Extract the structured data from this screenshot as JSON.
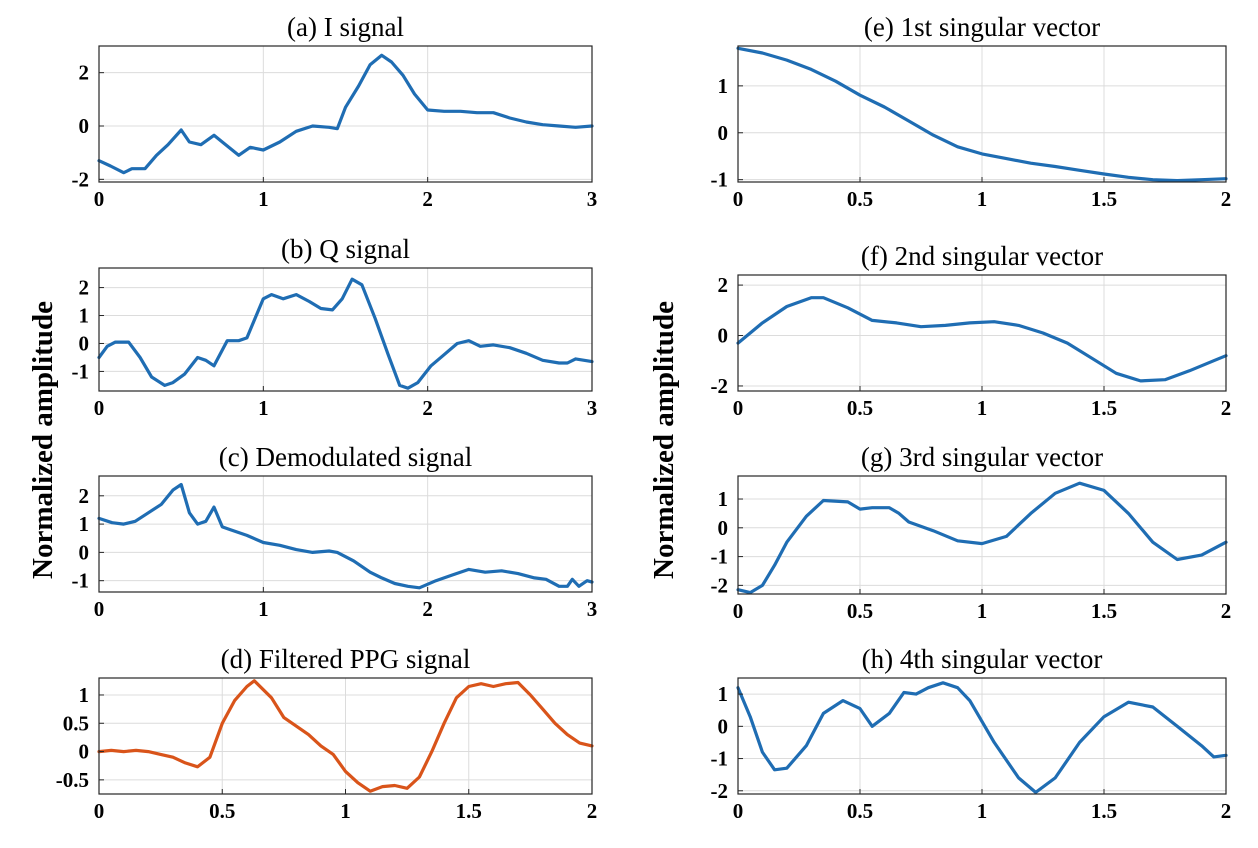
{
  "y_label_left": "Normalized amplitude",
  "y_label_right": "Normalized amplitude",
  "colors": {
    "blue": "#1f6db3",
    "orange": "#d9541a"
  },
  "chart_data": [
    {
      "id": "a",
      "type": "line",
      "title": "(a) I signal",
      "xlim": [
        0,
        3
      ],
      "ylim": [
        -2.1,
        3.0
      ],
      "xticks": [
        0,
        1,
        2,
        3
      ],
      "xtick_labels": [
        "0",
        "1",
        "2",
        "3"
      ],
      "yticks": [
        -2,
        0,
        2
      ],
      "ytick_labels": [
        "-2",
        "0",
        "2"
      ],
      "color": "blue",
      "series": [
        {
          "name": "I signal",
          "x": [
            0,
            0.07,
            0.15,
            0.2,
            0.28,
            0.35,
            0.42,
            0.5,
            0.55,
            0.62,
            0.7,
            0.75,
            0.85,
            0.92,
            1.0,
            1.1,
            1.2,
            1.3,
            1.4,
            1.45,
            1.5,
            1.58,
            1.65,
            1.72,
            1.78,
            1.85,
            1.92,
            2.0,
            2.1,
            2.2,
            2.3,
            2.4,
            2.5,
            2.6,
            2.7,
            2.8,
            2.9,
            3.0
          ],
          "y": [
            -1.3,
            -1.5,
            -1.75,
            -1.6,
            -1.6,
            -1.1,
            -0.7,
            -0.15,
            -0.6,
            -0.7,
            -0.35,
            -0.6,
            -1.1,
            -0.8,
            -0.9,
            -0.6,
            -0.2,
            0.0,
            -0.05,
            -0.1,
            0.7,
            1.5,
            2.3,
            2.65,
            2.4,
            1.9,
            1.2,
            0.6,
            0.55,
            0.55,
            0.5,
            0.5,
            0.3,
            0.15,
            0.05,
            0.0,
            -0.05,
            0.0
          ]
        }
      ]
    },
    {
      "id": "b",
      "type": "line",
      "title": "(b) Q signal",
      "xlim": [
        0,
        3
      ],
      "ylim": [
        -1.7,
        2.7
      ],
      "xticks": [
        0,
        1,
        2,
        3
      ],
      "xtick_labels": [
        "0",
        "1",
        "2",
        "3"
      ],
      "yticks": [
        -1,
        0,
        1,
        2
      ],
      "ytick_labels": [
        "-1",
        "0",
        "1",
        "2"
      ],
      "color": "blue",
      "series": [
        {
          "name": "Q signal",
          "x": [
            0,
            0.05,
            0.1,
            0.18,
            0.25,
            0.32,
            0.4,
            0.45,
            0.52,
            0.6,
            0.65,
            0.7,
            0.78,
            0.85,
            0.9,
            0.95,
            1.0,
            1.05,
            1.12,
            1.2,
            1.28,
            1.35,
            1.42,
            1.48,
            1.54,
            1.6,
            1.68,
            1.76,
            1.83,
            1.88,
            1.94,
            2.02,
            2.1,
            2.18,
            2.25,
            2.32,
            2.4,
            2.5,
            2.6,
            2.7,
            2.8,
            2.85,
            2.9,
            3.0
          ],
          "y": [
            -0.5,
            -0.1,
            0.05,
            0.05,
            -0.5,
            -1.2,
            -1.5,
            -1.4,
            -1.1,
            -0.5,
            -0.6,
            -0.8,
            0.1,
            0.1,
            0.2,
            0.9,
            1.6,
            1.75,
            1.6,
            1.75,
            1.5,
            1.25,
            1.2,
            1.6,
            2.3,
            2.1,
            0.9,
            -0.4,
            -1.5,
            -1.6,
            -1.4,
            -0.8,
            -0.4,
            0.0,
            0.1,
            -0.1,
            -0.05,
            -0.15,
            -0.35,
            -0.6,
            -0.7,
            -0.7,
            -0.55,
            -0.65
          ]
        }
      ]
    },
    {
      "id": "c",
      "type": "line",
      "title": "(c) Demodulated signal",
      "xlim": [
        0,
        3
      ],
      "ylim": [
        -1.4,
        2.7
      ],
      "xticks": [
        0,
        1,
        2,
        3
      ],
      "xtick_labels": [
        "0",
        "1",
        "2",
        "3"
      ],
      "yticks": [
        -1,
        0,
        1,
        2
      ],
      "ytick_labels": [
        "-1",
        "0",
        "1",
        "2"
      ],
      "color": "blue",
      "series": [
        {
          "name": "Demodulated signal",
          "x": [
            0,
            0.08,
            0.15,
            0.22,
            0.3,
            0.38,
            0.45,
            0.5,
            0.55,
            0.6,
            0.65,
            0.7,
            0.75,
            0.8,
            0.9,
            1.0,
            1.1,
            1.2,
            1.3,
            1.4,
            1.45,
            1.55,
            1.65,
            1.72,
            1.8,
            1.88,
            1.95,
            2.05,
            2.15,
            2.25,
            2.35,
            2.45,
            2.55,
            2.65,
            2.72,
            2.8,
            2.85,
            2.88,
            2.92,
            2.97,
            3.0
          ],
          "y": [
            1.2,
            1.05,
            1.0,
            1.1,
            1.4,
            1.7,
            2.2,
            2.4,
            1.4,
            1.0,
            1.1,
            1.6,
            0.9,
            0.8,
            0.6,
            0.35,
            0.25,
            0.1,
            0.0,
            0.05,
            0.0,
            -0.3,
            -0.7,
            -0.9,
            -1.1,
            -1.2,
            -1.25,
            -1.0,
            -0.8,
            -0.6,
            -0.7,
            -0.65,
            -0.75,
            -0.9,
            -0.95,
            -1.2,
            -1.2,
            -0.95,
            -1.2,
            -1.0,
            -1.05
          ]
        }
      ]
    },
    {
      "id": "d",
      "type": "line",
      "title": "(d) Filtered PPG signal",
      "xlim": [
        0,
        2
      ],
      "ylim": [
        -0.75,
        1.3
      ],
      "xticks": [
        0,
        0.5,
        1,
        1.5,
        2
      ],
      "xtick_labels": [
        "0",
        "0.5",
        "1",
        "1.5",
        "2"
      ],
      "yticks": [
        -0.5,
        0,
        0.5,
        1
      ],
      "ytick_labels": [
        "-0.5",
        "0",
        "0.5",
        "1"
      ],
      "color": "orange",
      "series": [
        {
          "name": "Filtered PPG signal",
          "x": [
            0,
            0.05,
            0.1,
            0.15,
            0.2,
            0.25,
            0.3,
            0.35,
            0.4,
            0.45,
            0.5,
            0.55,
            0.6,
            0.63,
            0.7,
            0.75,
            0.8,
            0.85,
            0.9,
            0.95,
            1.0,
            1.05,
            1.1,
            1.15,
            1.2,
            1.25,
            1.3,
            1.35,
            1.4,
            1.45,
            1.5,
            1.55,
            1.6,
            1.65,
            1.7,
            1.75,
            1.8,
            1.85,
            1.9,
            1.95,
            2.0
          ],
          "y": [
            0.0,
            0.02,
            0.0,
            0.02,
            0.0,
            -0.05,
            -0.1,
            -0.2,
            -0.27,
            -0.1,
            0.5,
            0.9,
            1.15,
            1.25,
            0.95,
            0.6,
            0.45,
            0.3,
            0.1,
            -0.05,
            -0.35,
            -0.55,
            -0.7,
            -0.62,
            -0.6,
            -0.65,
            -0.45,
            0.0,
            0.5,
            0.95,
            1.15,
            1.2,
            1.15,
            1.2,
            1.22,
            1.0,
            0.75,
            0.5,
            0.3,
            0.15,
            0.1
          ]
        }
      ]
    },
    {
      "id": "e",
      "type": "line",
      "title": "(e) 1st singular vector",
      "xlim": [
        0,
        2
      ],
      "ylim": [
        -1.05,
        1.85
      ],
      "xticks": [
        0,
        0.5,
        1,
        1.5,
        2
      ],
      "xtick_labels": [
        "0",
        "0.5",
        "1",
        "1.5",
        "2"
      ],
      "yticks": [
        -1,
        0,
        1
      ],
      "ytick_labels": [
        "-1",
        "0",
        "1"
      ],
      "color": "blue",
      "series": [
        {
          "name": "1st singular vector",
          "x": [
            0,
            0.1,
            0.2,
            0.3,
            0.4,
            0.5,
            0.6,
            0.7,
            0.8,
            0.9,
            1.0,
            1.1,
            1.2,
            1.3,
            1.4,
            1.5,
            1.6,
            1.7,
            1.8,
            1.9,
            2.0
          ],
          "y": [
            1.8,
            1.7,
            1.55,
            1.35,
            1.1,
            0.8,
            0.55,
            0.25,
            -0.05,
            -0.3,
            -0.45,
            -0.55,
            -0.65,
            -0.72,
            -0.8,
            -0.88,
            -0.95,
            -1.0,
            -1.02,
            -1.0,
            -0.98
          ]
        }
      ]
    },
    {
      "id": "f",
      "type": "line",
      "title": "(f) 2nd singular vector",
      "xlim": [
        0,
        2
      ],
      "ylim": [
        -2.2,
        2.4
      ],
      "xticks": [
        0,
        0.5,
        1,
        1.5,
        2
      ],
      "xtick_labels": [
        "0",
        "0.5",
        "1",
        "1.5",
        "2"
      ],
      "yticks": [
        -2,
        0,
        2
      ],
      "ytick_labels": [
        "-2",
        "0",
        "2"
      ],
      "color": "blue",
      "series": [
        {
          "name": "2nd singular vector",
          "x": [
            0,
            0.1,
            0.2,
            0.3,
            0.35,
            0.45,
            0.55,
            0.65,
            0.75,
            0.85,
            0.95,
            1.05,
            1.15,
            1.25,
            1.35,
            1.45,
            1.55,
            1.65,
            1.75,
            1.85,
            1.95,
            2.0
          ],
          "y": [
            -0.3,
            0.5,
            1.15,
            1.5,
            1.5,
            1.1,
            0.6,
            0.5,
            0.35,
            0.4,
            0.5,
            0.55,
            0.4,
            0.1,
            -0.3,
            -0.9,
            -1.5,
            -1.8,
            -1.75,
            -1.4,
            -1.0,
            -0.8
          ]
        }
      ]
    },
    {
      "id": "g",
      "type": "line",
      "title": "(g) 3rd singular vector",
      "xlim": [
        0,
        2
      ],
      "ylim": [
        -2.3,
        1.8
      ],
      "xticks": [
        0,
        0.5,
        1,
        1.5,
        2
      ],
      "xtick_labels": [
        "0",
        "0.5",
        "1",
        "1.5",
        "2"
      ],
      "yticks": [
        -2,
        -1,
        0,
        1
      ],
      "ytick_labels": [
        "-2",
        "-1",
        "0",
        "1"
      ],
      "color": "blue",
      "series": [
        {
          "name": "3rd singular vector",
          "x": [
            0,
            0.05,
            0.1,
            0.15,
            0.2,
            0.28,
            0.35,
            0.45,
            0.5,
            0.55,
            0.62,
            0.66,
            0.7,
            0.8,
            0.9,
            1.0,
            1.1,
            1.2,
            1.3,
            1.4,
            1.5,
            1.6,
            1.7,
            1.8,
            1.9,
            2.0
          ],
          "y": [
            -2.15,
            -2.25,
            -2.0,
            -1.3,
            -0.5,
            0.4,
            0.95,
            0.9,
            0.65,
            0.7,
            0.7,
            0.5,
            0.2,
            -0.1,
            -0.45,
            -0.55,
            -0.3,
            0.5,
            1.2,
            1.55,
            1.3,
            0.5,
            -0.5,
            -1.1,
            -0.95,
            -0.5
          ]
        }
      ]
    },
    {
      "id": "h",
      "type": "line",
      "title": "(h) 4th singular vector",
      "xlim": [
        0,
        2
      ],
      "ylim": [
        -2.1,
        1.5
      ],
      "xticks": [
        0,
        0.5,
        1,
        1.5,
        2
      ],
      "xtick_labels": [
        "0",
        "0.5",
        "1",
        "1.5",
        "2"
      ],
      "yticks": [
        -2,
        -1,
        0,
        1
      ],
      "ytick_labels": [
        "-2",
        "-1",
        "0",
        "1"
      ],
      "color": "blue",
      "series": [
        {
          "name": "4th singular vector",
          "x": [
            0,
            0.05,
            0.1,
            0.15,
            0.2,
            0.28,
            0.35,
            0.43,
            0.5,
            0.55,
            0.62,
            0.68,
            0.73,
            0.78,
            0.84,
            0.9,
            0.95,
            1.05,
            1.15,
            1.22,
            1.3,
            1.4,
            1.5,
            1.6,
            1.7,
            1.8,
            1.9,
            1.95,
            2.0
          ],
          "y": [
            1.2,
            0.3,
            -0.8,
            -1.35,
            -1.3,
            -0.6,
            0.4,
            0.8,
            0.55,
            0.0,
            0.4,
            1.05,
            1.0,
            1.2,
            1.35,
            1.2,
            0.8,
            -0.5,
            -1.6,
            -2.05,
            -1.6,
            -0.5,
            0.3,
            0.75,
            0.6,
            0.0,
            -0.6,
            -0.95,
            -0.9
          ]
        }
      ]
    }
  ]
}
